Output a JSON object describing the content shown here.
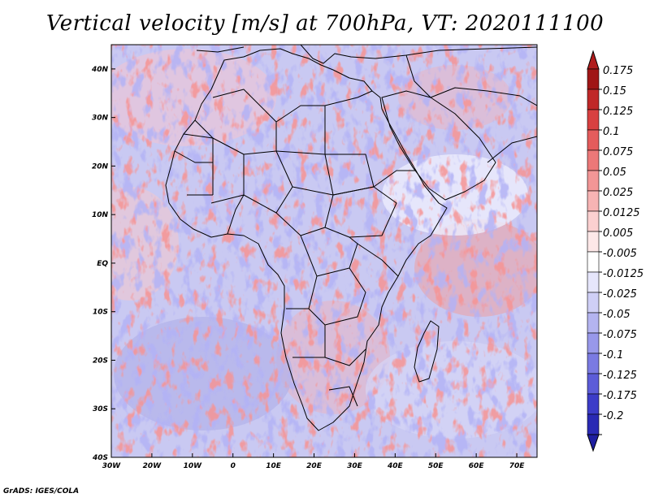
{
  "title": "Vertical velocity [m/s] at 700hPa, VT: 2020111100",
  "credit": "GrADS: IGES/COLA",
  "map": {
    "lon_range": [
      -30,
      75
    ],
    "lat_range": [
      -40,
      45
    ],
    "lon_ticks": [
      {
        "lon": -30,
        "label": "30W"
      },
      {
        "lon": -20,
        "label": "20W"
      },
      {
        "lon": -10,
        "label": "10W"
      },
      {
        "lon": 0,
        "label": "0"
      },
      {
        "lon": 10,
        "label": "10E"
      },
      {
        "lon": 20,
        "label": "20E"
      },
      {
        "lon": 30,
        "label": "30E"
      },
      {
        "lon": 40,
        "label": "40E"
      },
      {
        "lon": 50,
        "label": "50E"
      },
      {
        "lon": 60,
        "label": "60E"
      },
      {
        "lon": 70,
        "label": "70E"
      }
    ],
    "lat_ticks": [
      {
        "lat": 40,
        "label": "40N"
      },
      {
        "lat": 30,
        "label": "30N"
      },
      {
        "lat": 20,
        "label": "20N"
      },
      {
        "lat": 10,
        "label": "10N"
      },
      {
        "lat": 0,
        "label": "EQ"
      },
      {
        "lat": -10,
        "label": "10S"
      },
      {
        "lat": -20,
        "label": "20S"
      },
      {
        "lat": -30,
        "label": "30S"
      },
      {
        "lat": -40,
        "label": "40S"
      }
    ]
  },
  "colorbar": {
    "levels": [
      {
        "label": "0.175",
        "color": "#a01616"
      },
      {
        "label": "0.15",
        "color": "#c02828"
      },
      {
        "label": "0.125",
        "color": "#d84040"
      },
      {
        "label": "0.1",
        "color": "#e45c5c"
      },
      {
        "label": "0.075",
        "color": "#ec7878"
      },
      {
        "label": "0.05",
        "color": "#f29696"
      },
      {
        "label": "0.025",
        "color": "#f7b4b4"
      },
      {
        "label": "0.0125",
        "color": "#fbd0d0"
      },
      {
        "label": "0.005",
        "color": "#fde8e8"
      },
      {
        "label": "-0.005",
        "color": "#ffffff"
      },
      {
        "label": "-0.0125",
        "color": "#e6e6fb"
      },
      {
        "label": "-0.025",
        "color": "#cfcff6"
      },
      {
        "label": "-0.05",
        "color": "#b4b4f0"
      },
      {
        "label": "-0.075",
        "color": "#9898ea"
      },
      {
        "label": "-0.1",
        "color": "#7a7ae2"
      },
      {
        "label": "-0.125",
        "color": "#5c5cd8"
      },
      {
        "label": "-0.175",
        "color": "#3c3cc8"
      },
      {
        "label": "-0.2",
        "color": "#2a2ab4"
      }
    ],
    "end_top_color": "#b01c1c",
    "end_bottom_color": "#1e1ea0"
  }
}
